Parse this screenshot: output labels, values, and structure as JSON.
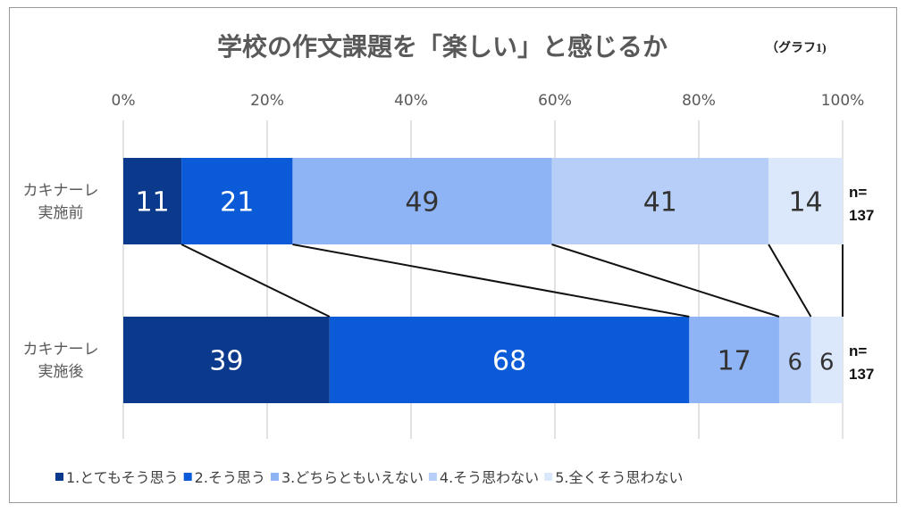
{
  "chart_data": {
    "type": "bar",
    "orientation": "horizontal",
    "stacked": "percent",
    "title": "学校の作文課題を「楽しい」と感じるか",
    "subtitle": "（グラフ1)",
    "categories": [
      "カキナーレ\n実施前",
      "カキナーレ\n実施後"
    ],
    "category_lines": [
      [
        "カキナーレ",
        "実施前"
      ],
      [
        "カキナーレ",
        "実施後"
      ]
    ],
    "n_labels": [
      [
        "n=",
        "137"
      ],
      [
        "n=",
        "137"
      ]
    ],
    "xlim": [
      0,
      100
    ],
    "x_ticks": [
      "0%",
      "20%",
      "40%",
      "60%",
      "80%",
      "100%"
    ],
    "grid": true,
    "legend_position": "bottom",
    "series_lines": true,
    "series": [
      {
        "name": "1.とてもそう思う",
        "color": "#0b3a8d",
        "values": [
          11,
          39
        ]
      },
      {
        "name": "2.そう思う",
        "color": "#0b5bd8",
        "values": [
          21,
          68
        ]
      },
      {
        "name": "3.どちらともいえない",
        "color": "#8fb4f6",
        "values": [
          49,
          17
        ]
      },
      {
        "name": "4.そう思わない",
        "color": "#b7cff8",
        "values": [
          41,
          6
        ]
      },
      {
        "name": "5.全くそう思わない",
        "color": "#dbe7fb",
        "values": [
          14,
          6
        ]
      }
    ],
    "label_colors": [
      "#ffffff",
      "#ffffff",
      "#333333",
      "#333333",
      "#333333"
    ]
  }
}
